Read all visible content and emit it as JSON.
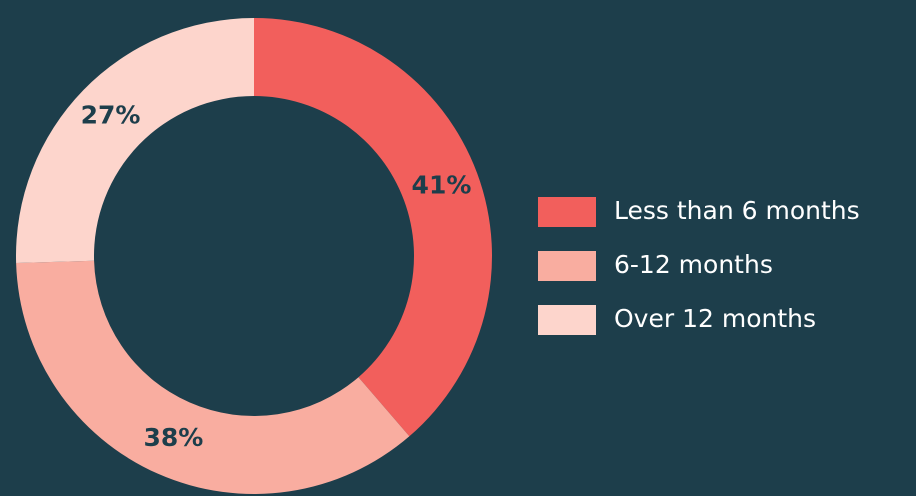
{
  "chart_data": {
    "type": "donut",
    "categories": [
      "Less than 6 months",
      "6-12 months",
      "Over 12 months"
    ],
    "values": [
      41,
      38,
      27
    ],
    "value_labels": [
      "41%",
      "38%",
      "27%"
    ],
    "colors": [
      "#f25f5c",
      "#f9ada0",
      "#fdd5cc"
    ],
    "legend": "right"
  }
}
